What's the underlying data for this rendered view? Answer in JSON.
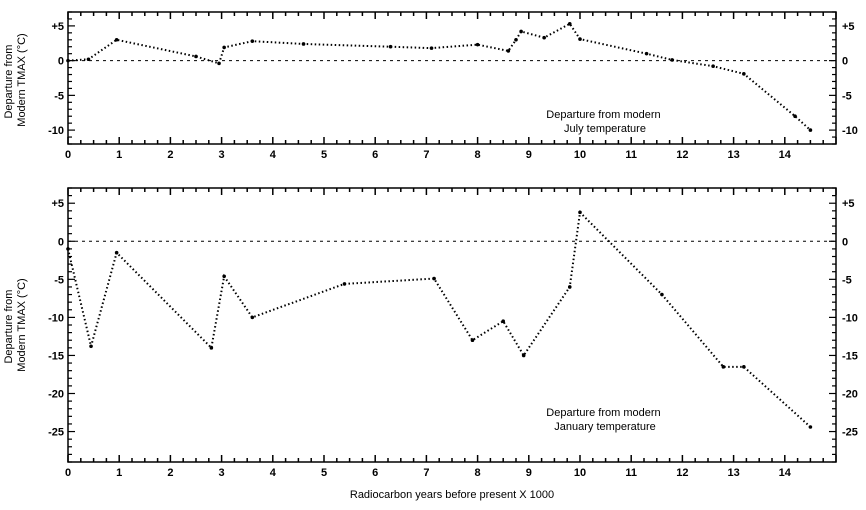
{
  "xlabel": "Radiocarbon years before present X 1000",
  "chart_data": [
    {
      "type": "line",
      "ylabel": [
        "Departure from",
        "Modern TMAX (°C)"
      ],
      "annotation": [
        "Departure from modern",
        "July temperature"
      ],
      "xlim": [
        0,
        15
      ],
      "ylim": [
        -12,
        7
      ],
      "xticks": [
        0,
        1,
        2,
        3,
        4,
        5,
        6,
        7,
        8,
        9,
        10,
        11,
        12,
        13,
        14
      ],
      "xtick_labels": [
        "0",
        "1",
        "2",
        "3",
        "4",
        "5",
        "6",
        "7",
        "8",
        "9",
        "10",
        "11",
        "12",
        "13",
        "14"
      ],
      "yticks": [
        5,
        0,
        -5,
        -10
      ],
      "ytick_labels": [
        "+5",
        "0",
        "-5",
        "-10"
      ],
      "reference_line": 0,
      "grid": false,
      "series": [
        {
          "x": [
            0,
            0.4,
            0.95,
            2.5,
            2.95,
            3.05,
            3.6,
            4.6,
            6.3,
            7.1,
            8.0,
            8.6,
            8.75,
            8.85,
            9.3,
            9.8,
            10.0,
            11.3,
            11.8,
            12.6,
            13.2,
            14.2,
            14.5
          ],
          "y": [
            0,
            0.2,
            3.0,
            0.6,
            -0.4,
            1.9,
            2.8,
            2.4,
            2.0,
            1.8,
            2.3,
            1.4,
            3.0,
            4.2,
            3.3,
            5.3,
            3.1,
            1.0,
            0.1,
            -0.8,
            -1.9,
            -8.0,
            -10.0
          ]
        }
      ]
    },
    {
      "type": "line",
      "ylabel": [
        "Departure from",
        "Modern TMAX (°C)"
      ],
      "annotation": [
        "Departure from modern",
        "January temperature"
      ],
      "xlim": [
        0,
        15
      ],
      "ylim": [
        -29,
        7
      ],
      "xticks": [
        0,
        1,
        2,
        3,
        4,
        5,
        6,
        7,
        8,
        9,
        10,
        11,
        12,
        13,
        14
      ],
      "xtick_labels": [
        "0",
        "1",
        "2",
        "3",
        "4",
        "5",
        "6",
        "7",
        "8",
        "9",
        "10",
        "11",
        "12",
        "13",
        "14"
      ],
      "yticks": [
        5,
        0,
        -5,
        -10,
        -15,
        -20,
        -25
      ],
      "ytick_labels": [
        "+5",
        "0",
        "-5",
        "-10",
        "-15",
        "-20",
        "-25"
      ],
      "reference_line": 0,
      "grid": false,
      "series": [
        {
          "x": [
            0,
            0.45,
            0.95,
            2.8,
            3.05,
            3.6,
            5.4,
            7.15,
            7.9,
            8.5,
            8.9,
            9.8,
            10.0,
            11.6,
            12.8,
            13.2,
            14.5
          ],
          "y": [
            -1.0,
            -13.8,
            -1.5,
            -14.0,
            -4.6,
            -10.0,
            -5.6,
            -4.9,
            -13.0,
            -10.5,
            -15.0,
            -6.0,
            3.8,
            -7.0,
            -16.5,
            -16.5,
            -24.4
          ]
        }
      ]
    }
  ]
}
